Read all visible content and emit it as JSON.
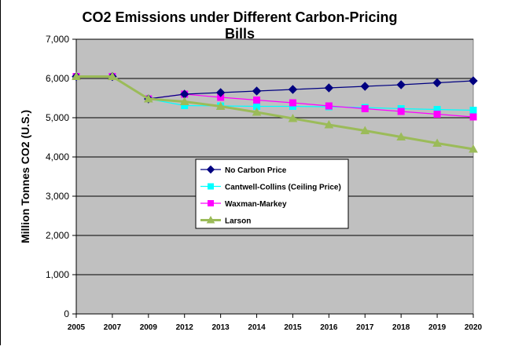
{
  "chart_data": {
    "type": "line",
    "title": "CO2 Emissions under Different Carbon-Pricing Bills",
    "title_lines": [
      "CO2 Emissions under Different Carbon-Pricing",
      "Bills"
    ],
    "xlabel": "",
    "ylabel": "Million Tonnes CO2 (U.S.)",
    "categories": [
      "2005",
      "2007",
      "2009",
      "2012",
      "2013",
      "2014",
      "2015",
      "2016",
      "2017",
      "2018",
      "2019",
      "2020"
    ],
    "ylim": [
      0,
      7000
    ],
    "yticks": [
      "0",
      "1,000",
      "2,000",
      "3,000",
      "4,000",
      "5,000",
      "6,000",
      "7,000"
    ],
    "grid": true,
    "legend_position": "center",
    "plot_background": "#c0c0c0",
    "series": [
      {
        "name": "No Carbon Price",
        "color": "#000080",
        "marker": "diamond",
        "values": [
          6050,
          6050,
          5480,
          5600,
          5640,
          5680,
          5720,
          5760,
          5800,
          5840,
          5890,
          5940
        ]
      },
      {
        "name": "Cantwell-Collins (Ceiling Price)",
        "color": "#00ffff",
        "marker": "square",
        "values": [
          6050,
          6050,
          5480,
          5310,
          5300,
          5290,
          5290,
          5280,
          5260,
          5230,
          5210,
          5190
        ]
      },
      {
        "name": "Waxman-Markey",
        "color": "#ff00ff",
        "marker": "square",
        "values": [
          6050,
          6050,
          5480,
          5600,
          5520,
          5450,
          5380,
          5300,
          5230,
          5160,
          5090,
          5020
        ]
      },
      {
        "name": "Larson",
        "color": "#9bbb59",
        "marker": "triangle",
        "values": [
          6050,
          6050,
          5480,
          5410,
          5290,
          5140,
          4980,
          4820,
          4670,
          4510,
          4350,
          4200
        ]
      }
    ]
  }
}
